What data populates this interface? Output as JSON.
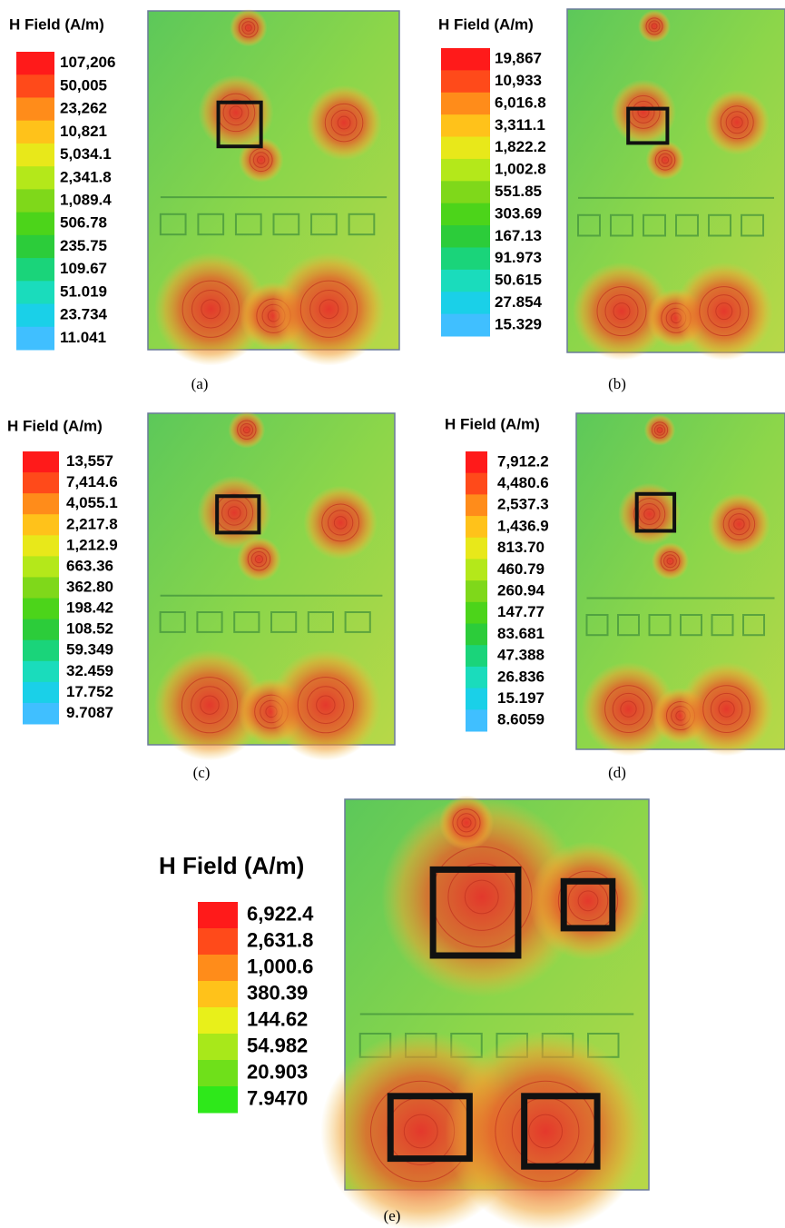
{
  "panels": [
    {
      "legend_title": "H Field (A/m)",
      "labels": [
        "107,206",
        "50,005",
        "23,262",
        "10,821",
        "5,034.1",
        "2,341.8",
        "1,089.4",
        "506.78",
        "235.75",
        "109.67",
        "51.019",
        "23.734",
        "11.041"
      ],
      "caption": "(a)"
    },
    {
      "legend_title": "H Field (A/m)",
      "labels": [
        "19,867",
        "10,933",
        "6,016.8",
        "3,311.1",
        "1,822.2",
        "1,002.8",
        "551.85",
        "303.69",
        "167.13",
        "91.973",
        "50.615",
        "27.854",
        "15.329"
      ],
      "caption": "(b)"
    },
    {
      "legend_title": "H Field (A/m)",
      "labels": [
        "13,557",
        "7,414.6",
        "4,055.1",
        "2,217.8",
        "1,212.9",
        "663.36",
        "362.80",
        "198.42",
        "108.52",
        "59.349",
        "32.459",
        "17.752",
        "9.7087"
      ],
      "caption": "(c)"
    },
    {
      "legend_title": "H Field (A/m)",
      "labels": [
        "7,912.2",
        "4,480.6",
        "2,537.3",
        "1,436.9",
        "813.70",
        "460.79",
        "260.94",
        "147.77",
        "83.681",
        "47.388",
        "26.836",
        "15.197",
        "8.6059"
      ],
      "caption": "(d)"
    },
    {
      "legend_title": "H Field (A/m)",
      "labels": [
        "6,922.4",
        "2,631.8",
        "1,000.6",
        "380.39",
        "144.62",
        "54.982",
        "20.903",
        "7.9470"
      ],
      "caption": "(e)"
    }
  ]
}
